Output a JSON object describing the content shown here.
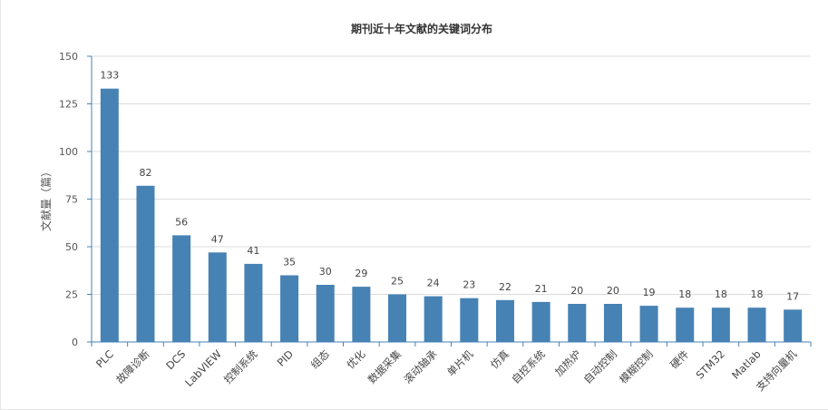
{
  "chart_data": {
    "type": "bar",
    "title": "期刊近十年文献的关键词分布",
    "xlabel": "",
    "ylabel": "文献量（篇）",
    "ylim": [
      0,
      150
    ],
    "yticks": [
      0,
      25,
      50,
      75,
      100,
      125,
      150
    ],
    "grid": true,
    "bar_color": "#4682b4",
    "categories": [
      "PLC",
      "故障诊断",
      "DCS",
      "LabVIEW",
      "控制系统",
      "PID",
      "组态",
      "优化",
      "数据采集",
      "滚动轴承",
      "单片机",
      "仿真",
      "自控系统",
      "加热炉",
      "自动控制",
      "模糊控制",
      "硬件",
      "STM32",
      "Matlab",
      "支持向量机"
    ],
    "values": [
      133,
      82,
      56,
      47,
      41,
      35,
      30,
      29,
      25,
      24,
      23,
      22,
      21,
      20,
      20,
      19,
      18,
      18,
      18,
      17
    ]
  }
}
